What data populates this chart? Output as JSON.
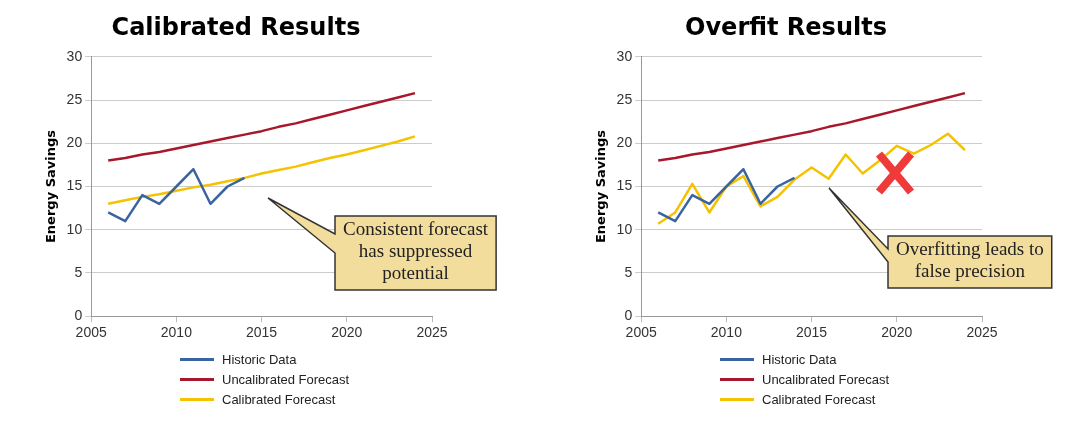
{
  "chart_data": [
    {
      "type": "line",
      "title": "Calibrated Results",
      "ylabel": "Energy Savings",
      "xlim": [
        2005,
        2025
      ],
      "xticks": [
        2005,
        2010,
        2015,
        2020,
        2025
      ],
      "ylim": [
        0,
        30
      ],
      "yticks": [
        0,
        5,
        10,
        15,
        20,
        25,
        30
      ],
      "grid": "y",
      "legend": "bottom",
      "x": [
        2006,
        2007,
        2008,
        2009,
        2010,
        2011,
        2012,
        2013,
        2014,
        2015,
        2016,
        2017,
        2018,
        2019,
        2020,
        2021,
        2022,
        2023,
        2024
      ],
      "series": [
        {
          "name": "Historic Data",
          "color": "#3a64a0",
          "x": [
            2006,
            2007,
            2008,
            2009,
            2010,
            2011,
            2012,
            2013,
            2014
          ],
          "values": [
            12,
            11,
            14,
            13,
            15,
            17,
            13,
            15,
            16
          ]
        },
        {
          "name": "Uncalibrated Forecast",
          "color": "#a8182c",
          "values": [
            18.0,
            18.3,
            18.7,
            19.0,
            19.4,
            19.8,
            20.2,
            20.6,
            21.0,
            21.4,
            21.9,
            22.3,
            22.8,
            23.3,
            23.8,
            24.3,
            24.8,
            25.3,
            25.8
          ]
        },
        {
          "name": "Calibrated Forecast",
          "color": "#f5c200",
          "values": [
            13.0,
            13.4,
            13.8,
            14.1,
            14.5,
            14.9,
            15.2,
            15.6,
            16.0,
            16.5,
            16.9,
            17.3,
            17.8,
            18.3,
            18.7,
            19.2,
            19.7,
            20.2,
            20.8
          ]
        }
      ],
      "annotations": [
        "Consistent forecast has suppressed potential"
      ]
    },
    {
      "type": "line",
      "title": "Overfit Results",
      "ylabel": "Energy Savings",
      "xlim": [
        2005,
        2025
      ],
      "xticks": [
        2005,
        2010,
        2015,
        2020,
        2025
      ],
      "ylim": [
        0,
        30
      ],
      "yticks": [
        0,
        5,
        10,
        15,
        20,
        25,
        30
      ],
      "grid": "y",
      "legend": "bottom",
      "x": [
        2006,
        2007,
        2008,
        2009,
        2010,
        2011,
        2012,
        2013,
        2014,
        2015,
        2016,
        2017,
        2018,
        2019,
        2020,
        2021,
        2022,
        2023,
        2024
      ],
      "series": [
        {
          "name": "Historic Data",
          "color": "#3a64a0",
          "x": [
            2006,
            2007,
            2008,
            2009,
            2010,
            2011,
            2012,
            2013,
            2014
          ],
          "values": [
            12,
            11,
            14,
            13,
            15,
            17,
            13,
            15,
            16
          ]
        },
        {
          "name": "Uncalibrated Forecast",
          "color": "#a8182c",
          "values": [
            18.0,
            18.3,
            18.7,
            19.0,
            19.4,
            19.8,
            20.2,
            20.6,
            21.0,
            21.4,
            21.9,
            22.3,
            22.8,
            23.3,
            23.8,
            24.3,
            24.8,
            25.3,
            25.8
          ]
        },
        {
          "name": "Calibrated Forecast",
          "color": "#f5c200",
          "values": [
            10.7,
            12,
            15.3,
            12,
            15,
            16.2,
            12.7,
            13.8,
            15.8,
            17.2,
            15.9,
            18.7,
            16.5,
            18,
            19.7,
            18.8,
            19.8,
            21.1,
            19.2
          ]
        }
      ],
      "annotations": [
        "Overfitting leads to false precision"
      ]
    }
  ]
}
